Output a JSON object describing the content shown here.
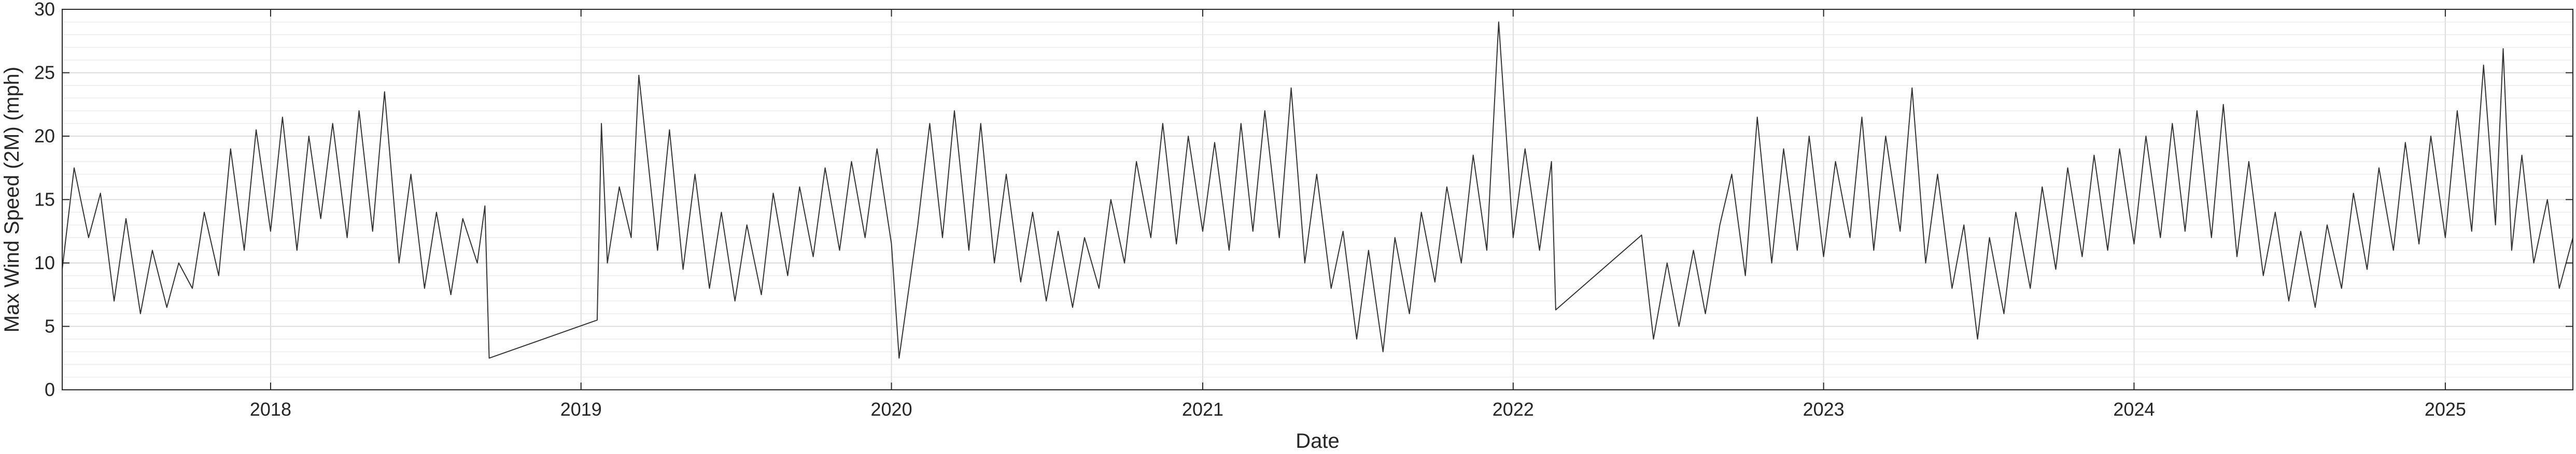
{
  "chart_data": {
    "type": "line",
    "title": "",
    "xlabel": "Date",
    "ylabel": "Max Wind Speed (2M) (mph)",
    "x_scale": "date",
    "xlim": [
      "2017-05-01",
      "2025-05-31"
    ],
    "ylim": [
      0,
      30
    ],
    "yticks": [
      0,
      5,
      10,
      15,
      20,
      25,
      30
    ],
    "xticks": [
      {
        "date": "2018-01-01",
        "label": "2018"
      },
      {
        "date": "2019-01-01",
        "label": "2019"
      },
      {
        "date": "2020-01-01",
        "label": "2020"
      },
      {
        "date": "2021-01-01",
        "label": "2021"
      },
      {
        "date": "2022-01-01",
        "label": "2022"
      },
      {
        "date": "2023-01-01",
        "label": "2023"
      },
      {
        "date": "2024-01-01",
        "label": "2024"
      },
      {
        "date": "2025-01-01",
        "label": "2025"
      }
    ],
    "grid": true,
    "minor_grid_y": true,
    "line_color": "#333333",
    "series": [
      {
        "values": [
          [
            "2017-05-01",
            9.5
          ],
          [
            "2017-05-15",
            17.5
          ],
          [
            "2017-06-01",
            12.0
          ],
          [
            "2017-06-15",
            15.5
          ],
          [
            "2017-07-01",
            7.0
          ],
          [
            "2017-07-15",
            13.5
          ],
          [
            "2017-08-01",
            6.0
          ],
          [
            "2017-08-15",
            11.0
          ],
          [
            "2017-09-01",
            6.5
          ],
          [
            "2017-09-15",
            10.0
          ],
          [
            "2017-10-01",
            8.0
          ],
          [
            "2017-10-15",
            14.0
          ],
          [
            "2017-11-01",
            9.0
          ],
          [
            "2017-11-15",
            19.0
          ],
          [
            "2017-12-01",
            11.0
          ],
          [
            "2017-12-15",
            20.5
          ],
          [
            "2018-01-01",
            12.5
          ],
          [
            "2018-01-15",
            21.5
          ],
          [
            "2018-02-01",
            11.0
          ],
          [
            "2018-02-15",
            20.0
          ],
          [
            "2018-03-01",
            13.5
          ],
          [
            "2018-03-15",
            21.0
          ],
          [
            "2018-04-01",
            12.0
          ],
          [
            "2018-04-15",
            22.0
          ],
          [
            "2018-05-01",
            12.5
          ],
          [
            "2018-05-15",
            23.5
          ],
          [
            "2018-06-01",
            10.0
          ],
          [
            "2018-06-15",
            17.0
          ],
          [
            "2018-07-01",
            8.0
          ],
          [
            "2018-07-15",
            14.0
          ],
          [
            "2018-08-01",
            7.5
          ],
          [
            "2018-08-15",
            13.5
          ],
          [
            "2018-09-01",
            10.0
          ],
          [
            "2018-09-10",
            14.5
          ],
          [
            "2018-09-15",
            2.5
          ],
          [
            "2019-01-20",
            5.5
          ],
          [
            "2019-01-25",
            21.0
          ],
          [
            "2019-02-01",
            10.0
          ],
          [
            "2019-02-15",
            16.0
          ],
          [
            "2019-03-01",
            12.0
          ],
          [
            "2019-03-10",
            24.8
          ],
          [
            "2019-04-01",
            11.0
          ],
          [
            "2019-04-15",
            20.5
          ],
          [
            "2019-05-01",
            9.5
          ],
          [
            "2019-05-15",
            17.0
          ],
          [
            "2019-06-01",
            8.0
          ],
          [
            "2019-06-15",
            14.0
          ],
          [
            "2019-07-01",
            7.0
          ],
          [
            "2019-07-15",
            13.0
          ],
          [
            "2019-08-01",
            7.5
          ],
          [
            "2019-08-15",
            15.5
          ],
          [
            "2019-09-01",
            9.0
          ],
          [
            "2019-09-15",
            16.0
          ],
          [
            "2019-10-01",
            10.5
          ],
          [
            "2019-10-15",
            17.5
          ],
          [
            "2019-11-01",
            11.0
          ],
          [
            "2019-11-15",
            18.0
          ],
          [
            "2019-12-01",
            12.0
          ],
          [
            "2019-12-15",
            19.0
          ],
          [
            "2020-01-01",
            11.5
          ],
          [
            "2020-01-10",
            2.5
          ],
          [
            "2020-02-01",
            13.0
          ],
          [
            "2020-02-15",
            21.0
          ],
          [
            "2020-03-01",
            12.0
          ],
          [
            "2020-03-15",
            22.0
          ],
          [
            "2020-04-01",
            11.0
          ],
          [
            "2020-04-15",
            21.0
          ],
          [
            "2020-05-01",
            10.0
          ],
          [
            "2020-05-15",
            17.0
          ],
          [
            "2020-06-01",
            8.5
          ],
          [
            "2020-06-15",
            14.0
          ],
          [
            "2020-07-01",
            7.0
          ],
          [
            "2020-07-15",
            12.5
          ],
          [
            "2020-08-01",
            6.5
          ],
          [
            "2020-08-15",
            12.0
          ],
          [
            "2020-09-01",
            8.0
          ],
          [
            "2020-09-15",
            15.0
          ],
          [
            "2020-10-01",
            10.0
          ],
          [
            "2020-10-15",
            18.0
          ],
          [
            "2020-11-01",
            12.0
          ],
          [
            "2020-11-15",
            21.0
          ],
          [
            "2020-12-01",
            11.5
          ],
          [
            "2020-12-15",
            20.0
          ],
          [
            "2021-01-01",
            12.5
          ],
          [
            "2021-01-15",
            19.5
          ],
          [
            "2021-02-01",
            11.0
          ],
          [
            "2021-02-15",
            21.0
          ],
          [
            "2021-03-01",
            12.5
          ],
          [
            "2021-03-15",
            22.0
          ],
          [
            "2021-04-01",
            12.0
          ],
          [
            "2021-04-15",
            23.8
          ],
          [
            "2021-05-01",
            10.0
          ],
          [
            "2021-05-15",
            17.0
          ],
          [
            "2021-06-01",
            8.0
          ],
          [
            "2021-06-15",
            12.5
          ],
          [
            "2021-07-01",
            4.0
          ],
          [
            "2021-07-15",
            11.0
          ],
          [
            "2021-08-01",
            3.0
          ],
          [
            "2021-08-15",
            12.0
          ],
          [
            "2021-09-01",
            6.0
          ],
          [
            "2021-09-15",
            14.0
          ],
          [
            "2021-10-01",
            8.5
          ],
          [
            "2021-10-15",
            16.0
          ],
          [
            "2021-11-01",
            10.0
          ],
          [
            "2021-11-15",
            18.5
          ],
          [
            "2021-12-01",
            11.0
          ],
          [
            "2021-12-15",
            29.0
          ],
          [
            "2022-01-01",
            12.0
          ],
          [
            "2022-01-15",
            19.0
          ],
          [
            "2022-02-01",
            11.0
          ],
          [
            "2022-02-15",
            18.0
          ],
          [
            "2022-02-20",
            6.3
          ],
          [
            "2022-06-01",
            12.2
          ],
          [
            "2022-06-15",
            4.0
          ],
          [
            "2022-07-01",
            10.0
          ],
          [
            "2022-07-15",
            5.0
          ],
          [
            "2022-08-01",
            11.0
          ],
          [
            "2022-08-15",
            6.0
          ],
          [
            "2022-09-01",
            13.0
          ],
          [
            "2022-09-15",
            17.0
          ],
          [
            "2022-10-01",
            9.0
          ],
          [
            "2022-10-15",
            21.5
          ],
          [
            "2022-11-01",
            10.0
          ],
          [
            "2022-11-15",
            19.0
          ],
          [
            "2022-12-01",
            11.0
          ],
          [
            "2022-12-15",
            20.0
          ],
          [
            "2023-01-01",
            10.5
          ],
          [
            "2023-01-15",
            18.0
          ],
          [
            "2023-02-01",
            12.0
          ],
          [
            "2023-02-15",
            21.5
          ],
          [
            "2023-03-01",
            11.0
          ],
          [
            "2023-03-15",
            20.0
          ],
          [
            "2023-04-01",
            12.5
          ],
          [
            "2023-04-15",
            23.8
          ],
          [
            "2023-05-01",
            10.0
          ],
          [
            "2023-05-15",
            17.0
          ],
          [
            "2023-06-01",
            8.0
          ],
          [
            "2023-06-15",
            13.0
          ],
          [
            "2023-07-01",
            4.0
          ],
          [
            "2023-07-15",
            12.0
          ],
          [
            "2023-08-01",
            6.0
          ],
          [
            "2023-08-15",
            14.0
          ],
          [
            "2023-09-01",
            8.0
          ],
          [
            "2023-09-15",
            16.0
          ],
          [
            "2023-10-01",
            9.5
          ],
          [
            "2023-10-15",
            17.5
          ],
          [
            "2023-11-01",
            10.5
          ],
          [
            "2023-11-15",
            18.5
          ],
          [
            "2023-12-01",
            11.0
          ],
          [
            "2023-12-15",
            19.0
          ],
          [
            "2024-01-01",
            11.5
          ],
          [
            "2024-01-15",
            20.0
          ],
          [
            "2024-02-01",
            12.0
          ],
          [
            "2024-02-15",
            21.0
          ],
          [
            "2024-03-01",
            12.5
          ],
          [
            "2024-03-15",
            22.0
          ],
          [
            "2024-04-01",
            12.0
          ],
          [
            "2024-04-15",
            22.5
          ],
          [
            "2024-05-01",
            10.5
          ],
          [
            "2024-05-15",
            18.0
          ],
          [
            "2024-06-01",
            9.0
          ],
          [
            "2024-06-15",
            14.0
          ],
          [
            "2024-07-01",
            7.0
          ],
          [
            "2024-07-15",
            12.5
          ],
          [
            "2024-08-01",
            6.5
          ],
          [
            "2024-08-15",
            13.0
          ],
          [
            "2024-09-01",
            8.0
          ],
          [
            "2024-09-15",
            15.5
          ],
          [
            "2024-10-01",
            9.5
          ],
          [
            "2024-10-15",
            17.5
          ],
          [
            "2024-11-01",
            11.0
          ],
          [
            "2024-11-15",
            19.5
          ],
          [
            "2024-12-01",
            11.5
          ],
          [
            "2024-12-15",
            20.0
          ],
          [
            "2025-01-01",
            12.0
          ],
          [
            "2025-01-15",
            22.0
          ],
          [
            "2025-02-01",
            12.5
          ],
          [
            "2025-02-15",
            25.6
          ],
          [
            "2025-03-01",
            13.0
          ],
          [
            "2025-03-10",
            26.9
          ],
          [
            "2025-03-20",
            11.0
          ],
          [
            "2025-04-01",
            18.5
          ],
          [
            "2025-04-15",
            10.0
          ],
          [
            "2025-05-01",
            15.0
          ],
          [
            "2025-05-15",
            8.0
          ],
          [
            "2025-05-31",
            12.0
          ]
        ]
      }
    ]
  }
}
